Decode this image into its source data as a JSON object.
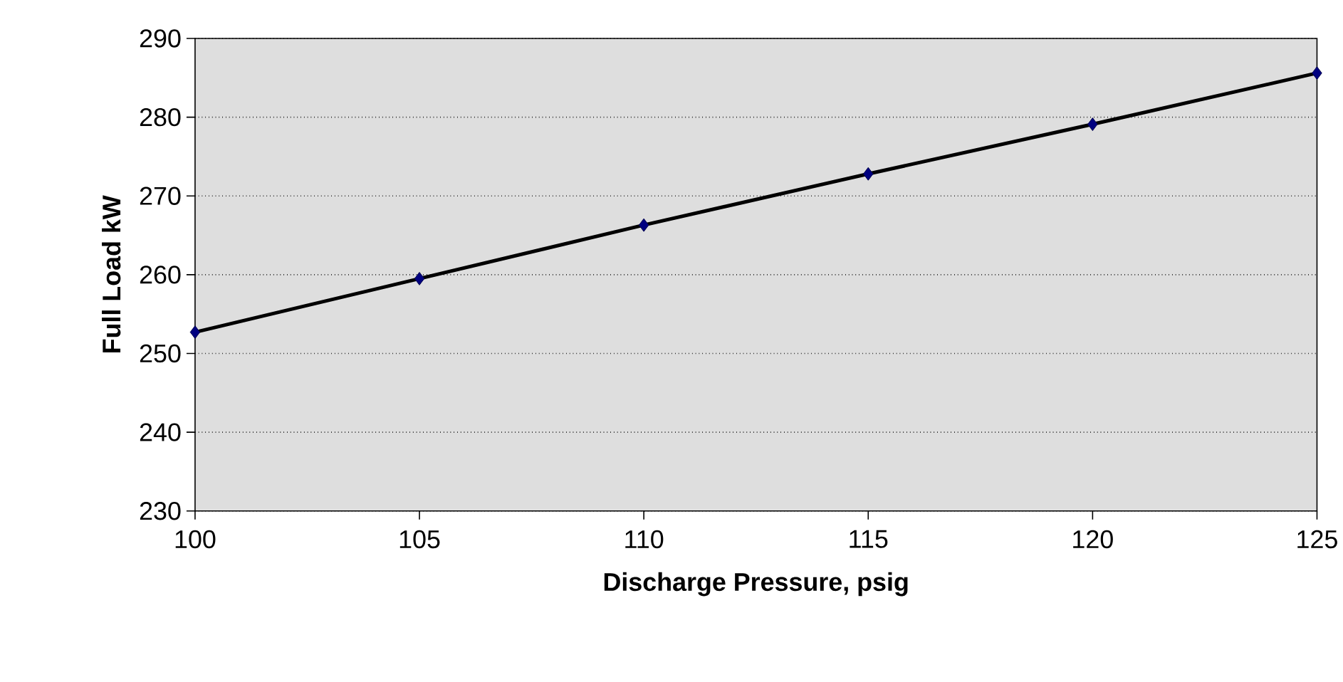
{
  "chart_data": {
    "type": "line",
    "xlabel": "Discharge Pressure, psig",
    "ylabel": "Full Load kW",
    "x": [
      100,
      105,
      110,
      115,
      120,
      125
    ],
    "series": [
      {
        "color": "#000000",
        "values": [
          252.7,
          259.5,
          266.3,
          272.8,
          279.1,
          285.6
        ]
      }
    ],
    "xlim": [
      100,
      125
    ],
    "xticks": [
      100,
      105,
      110,
      115,
      120,
      125
    ],
    "ylim": [
      230,
      290
    ],
    "yticks": [
      230,
      240,
      250,
      260,
      270,
      280,
      290
    ],
    "grid": "y",
    "marker": "diamond",
    "line_style": "solid"
  }
}
